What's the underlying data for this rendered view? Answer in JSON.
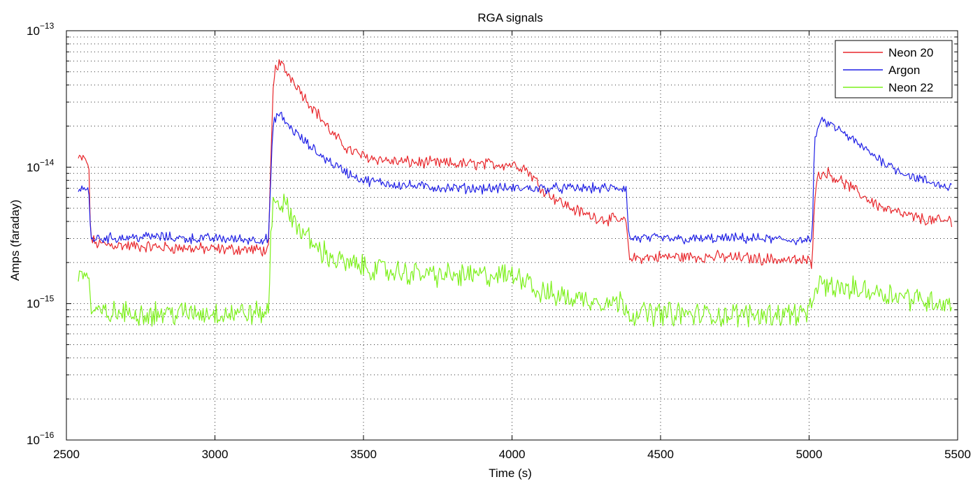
{
  "chart_data": {
    "type": "line",
    "title": "RGA signals",
    "xlabel": "Time (s)",
    "ylabel": "Amps (faraday)",
    "xlim": [
      2500,
      5500
    ],
    "ylim": [
      1e-16,
      1e-13
    ],
    "yscale": "log",
    "grid": true,
    "legend_position": "top-right",
    "x_ticks": [
      2500,
      3000,
      3500,
      4000,
      4500,
      5000,
      5500
    ],
    "x_tick_labels": [
      "2500",
      "3000",
      "3500",
      "4000",
      "4500",
      "5000",
      "5500"
    ],
    "y_ticks": [
      {
        "value": 1e-13,
        "base": "10",
        "exp": "−13"
      },
      {
        "value": 1e-14,
        "base": "10",
        "exp": "−14"
      },
      {
        "value": 1e-15,
        "base": "10",
        "exp": "−15"
      },
      {
        "value": 1e-16,
        "base": "10",
        "exp": "−16"
      }
    ],
    "series": [
      {
        "name": "Neon 20",
        "color": "#e8262b",
        "x": [
          2540,
          2560,
          2575,
          2582,
          2600,
          2700,
          2800,
          2900,
          3000,
          3100,
          3180,
          3188,
          3195,
          3205,
          3220,
          3240,
          3270,
          3300,
          3350,
          3400,
          3450,
          3500,
          3550,
          3600,
          3700,
          3800,
          3900,
          4000,
          4040,
          4070,
          4100,
          4150,
          4200,
          4250,
          4300,
          4350,
          4385,
          4393,
          4400,
          4500,
          4600,
          4700,
          4800,
          4900,
          5000,
          5010,
          5018,
          5025,
          5040,
          5055,
          5080,
          5120,
          5160,
          5200,
          5250,
          5300,
          5350,
          5400,
          5450,
          5480
        ],
        "y": [
          1.15e-14,
          1.15e-14,
          1.05e-14,
          3e-15,
          2.75e-15,
          2.65e-15,
          2.6e-15,
          2.55e-15,
          2.5e-15,
          2.5e-15,
          2.45e-15,
          1e-14,
          3.5e-14,
          5.5e-14,
          5.8e-14,
          5e-14,
          4.2e-14,
          3.3e-14,
          2.4e-14,
          1.7e-14,
          1.35e-14,
          1.2e-14,
          1.15e-14,
          1.1e-14,
          1.08e-14,
          1.06e-14,
          1.05e-14,
          1.05e-14,
          1e-14,
          8.5e-15,
          7e-15,
          5.8e-15,
          5e-15,
          4.5e-15,
          4.2e-15,
          4.1e-15,
          4e-15,
          2.2e-15,
          2.15e-15,
          2.2e-15,
          2.2e-15,
          2.2e-15,
          2.15e-15,
          2.1e-15,
          2.05e-15,
          2e-15,
          6e-15,
          8e-15,
          9e-15,
          9.2e-15,
          8.6e-15,
          7.6e-15,
          6.6e-15,
          5.8e-15,
          5e-15,
          4.6e-15,
          4.3e-15,
          4.1e-15,
          4e-15,
          4.1e-15
        ]
      },
      {
        "name": "Argon",
        "color": "#1f1fe6",
        "x": [
          2540,
          2560,
          2575,
          2582,
          2600,
          2700,
          2800,
          2900,
          3000,
          3100,
          3180,
          3188,
          3195,
          3205,
          3220,
          3240,
          3270,
          3300,
          3350,
          3400,
          3450,
          3500,
          3600,
          3700,
          3800,
          3900,
          4000,
          4100,
          4200,
          4300,
          4385,
          4393,
          4400,
          4500,
          4600,
          4700,
          4800,
          4900,
          5000,
          5010,
          5018,
          5025,
          5040,
          5055,
          5080,
          5120,
          5160,
          5200,
          5250,
          5300,
          5350,
          5400,
          5450,
          5480
        ],
        "y": [
          7e-15,
          7e-15,
          6.8e-15,
          3e-15,
          3e-15,
          3.05e-15,
          3.1e-15,
          3e-15,
          3e-15,
          2.95e-15,
          2.95e-15,
          8e-15,
          1.9e-14,
          2.4e-14,
          2.4e-14,
          2.1e-14,
          1.8e-14,
          1.55e-14,
          1.25e-14,
          1.05e-14,
          9e-15,
          8e-15,
          7.5e-15,
          7.2e-15,
          7e-15,
          7e-15,
          7e-15,
          7e-15,
          7e-15,
          7e-15,
          7e-15,
          3e-15,
          3e-15,
          3e-15,
          2.95e-15,
          3e-15,
          3e-15,
          2.95e-15,
          2.9e-15,
          2.9e-15,
          1.4e-14,
          1.9e-14,
          2.1e-14,
          2.15e-14,
          2e-14,
          1.75e-14,
          1.5e-14,
          1.3e-14,
          1.1e-14,
          9.5e-15,
          8.5e-15,
          7.8e-15,
          7.3e-15,
          7.1e-15
        ]
      },
      {
        "name": "Neon 22",
        "color": "#7cf01a",
        "x": [
          2540,
          2560,
          2575,
          2582,
          2600,
          2700,
          2800,
          2900,
          3000,
          3100,
          3180,
          3188,
          3195,
          3205,
          3220,
          3240,
          3270,
          3300,
          3350,
          3400,
          3450,
          3500,
          3600,
          3700,
          3800,
          3900,
          3950,
          4000,
          4060,
          4080,
          4100,
          4200,
          4300,
          4385,
          4393,
          4400,
          4500,
          4600,
          4700,
          4800,
          4900,
          5000,
          5010,
          5018,
          5030,
          5100,
          5200,
          5300,
          5400,
          5480
        ],
        "y": [
          1.7e-15,
          1.7e-15,
          1.55e-15,
          9e-16,
          8.5e-16,
          8.5e-16,
          8.5e-16,
          8.5e-16,
          8.5e-16,
          8.5e-16,
          8.5e-16,
          3e-15,
          5.5e-15,
          5.8e-15,
          5.5e-15,
          5e-15,
          4e-15,
          3.2e-15,
          2.5e-15,
          2.1e-15,
          1.95e-15,
          1.85e-15,
          1.7e-15,
          1.65e-15,
          1.6e-15,
          1.6e-15,
          1.6e-15,
          1.6e-15,
          1.55e-15,
          1.2e-15,
          1.2e-15,
          1.1e-15,
          1.05e-15,
          1e-15,
          8.5e-16,
          8.5e-16,
          8.5e-16,
          8.3e-16,
          8.2e-16,
          8.3e-16,
          8.4e-16,
          8.5e-16,
          9e-16,
          1.35e-15,
          1.35e-15,
          1.3e-15,
          1.25e-15,
          1.15e-15,
          1.05e-15,
          1e-15
        ]
      }
    ]
  }
}
